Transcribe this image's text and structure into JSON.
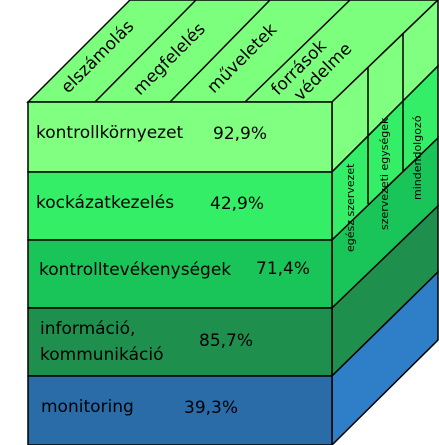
{
  "cube": {
    "top_columns": [
      {
        "label": "elszámolás"
      },
      {
        "label": "megfelelés"
      },
      {
        "label": "műveletek"
      },
      {
        "label": "források\nvédelme"
      }
    ],
    "layers": [
      {
        "label": "kontrollkörnyezet",
        "value": "92,9%",
        "color": "#80ff80"
      },
      {
        "label": "kockázatkezelés",
        "value": "42,9%",
        "color": "#33ee66"
      },
      {
        "label": "kontrolltevékenységek",
        "value": "71,4%",
        "color": "#19c559"
      },
      {
        "label": "információ,\nkommunikáció",
        "value": "85,7%",
        "color": "#1f8f4e"
      },
      {
        "label": "monitoring",
        "value": "39,3%",
        "color": "#2a6ca8"
      }
    ],
    "side_columns": [
      {
        "label": "egész szervezet"
      },
      {
        "label": "szervezeti egységek"
      },
      {
        "label": "mindendolgozó"
      }
    ]
  },
  "colors": {
    "top_face": "#7cff7c",
    "outline": "#000000",
    "blue_side": "#2f7fc8"
  }
}
